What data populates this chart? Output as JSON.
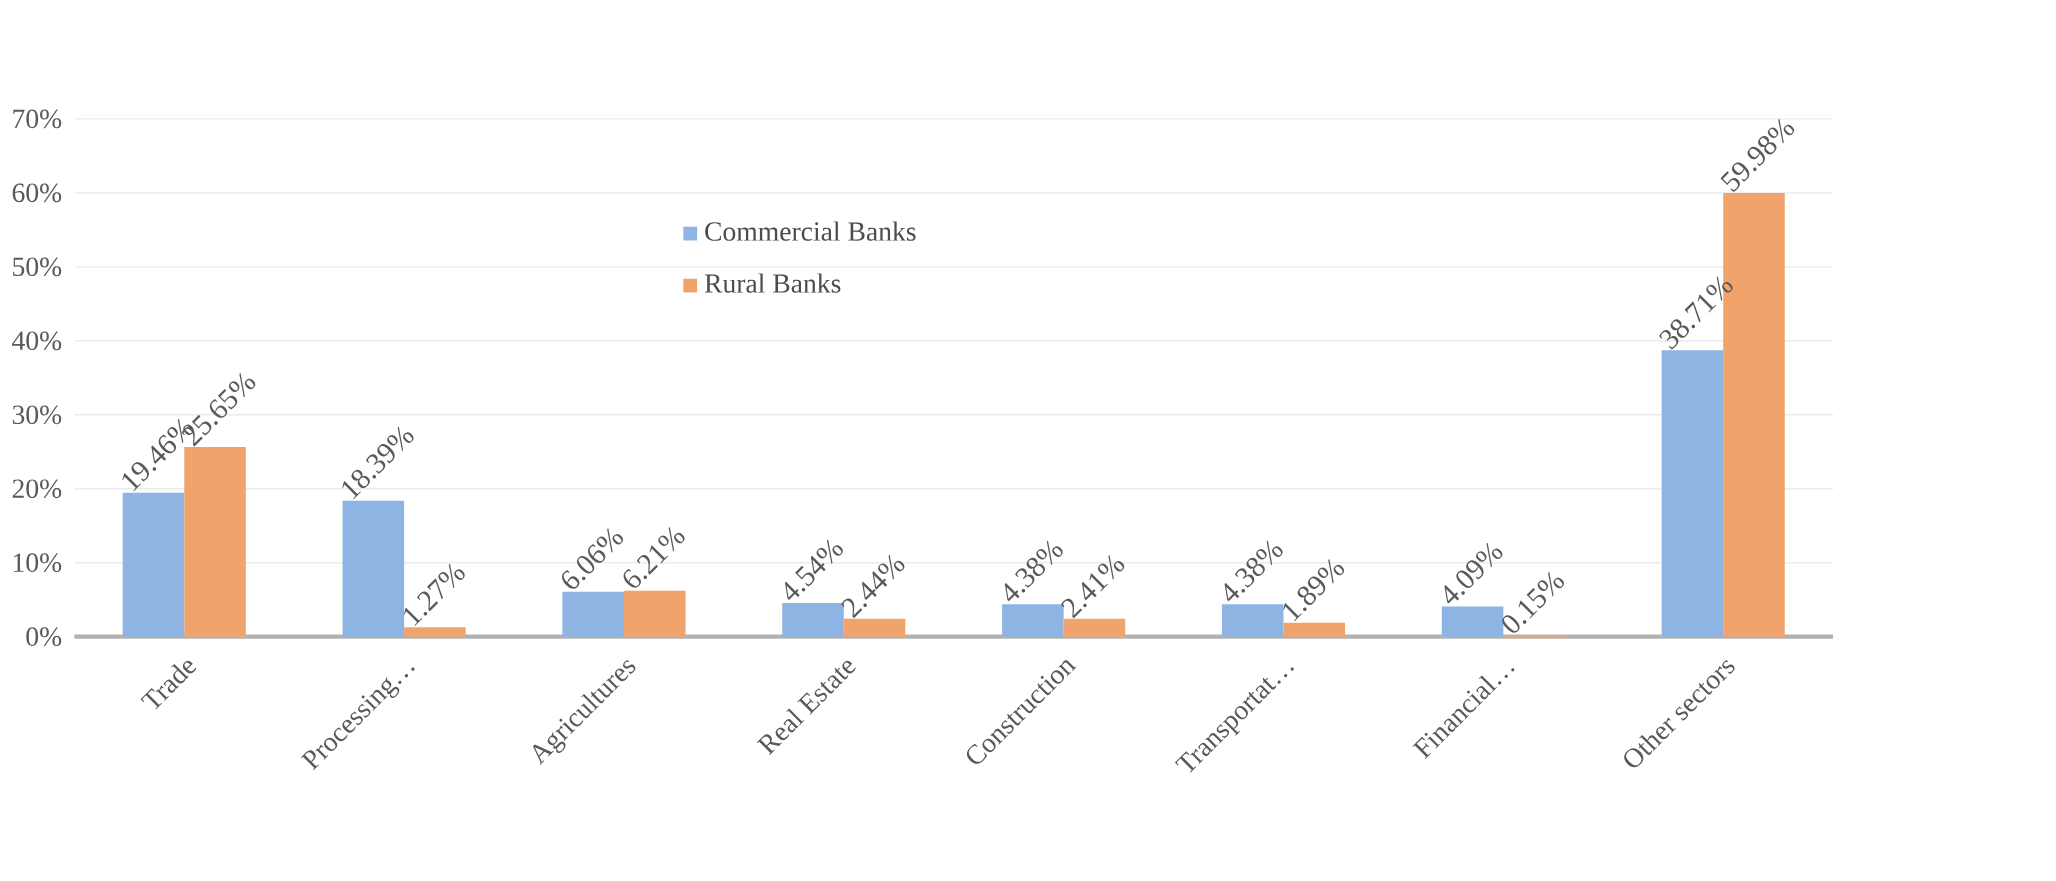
{
  "chart_data": {
    "type": "bar",
    "categories": [
      "Trade",
      "Processing…",
      "Agricultures",
      "Real Estate",
      "Construction",
      "Transportat…",
      "Financial…",
      "Other sectors"
    ],
    "series": [
      {
        "name": "Commercial Banks",
        "color": "#8db4e2",
        "values": [
          19.46,
          18.39,
          6.06,
          4.54,
          4.38,
          4.38,
          4.09,
          38.71
        ],
        "value_labels": [
          "19.46%",
          "18.39%",
          "6.06%",
          "4.54%",
          "4.38%",
          "4.38%",
          "4.09%",
          "38.71%"
        ]
      },
      {
        "name": "Rural Banks",
        "color": "#f0a46c",
        "values": [
          25.65,
          1.27,
          6.21,
          2.44,
          2.41,
          1.89,
          0.15,
          59.98
        ],
        "value_labels": [
          "25.65%",
          "1.27%",
          "6.21%",
          "2.44%",
          "2.41%",
          "1.89%",
          "0.15%",
          "59.98%"
        ]
      }
    ],
    "ylim": [
      0,
      70
    ],
    "yticks": [
      {
        "value": 0,
        "label": "0%"
      },
      {
        "value": 10,
        "label": "10%"
      },
      {
        "value": 20,
        "label": "20%"
      },
      {
        "value": 30,
        "label": "30%"
      },
      {
        "value": 40,
        "label": "40%"
      },
      {
        "value": 50,
        "label": "50%"
      },
      {
        "value": 60,
        "label": "60%"
      },
      {
        "value": 70,
        "label": "70%"
      }
    ],
    "grid": "y",
    "legend": "top"
  }
}
